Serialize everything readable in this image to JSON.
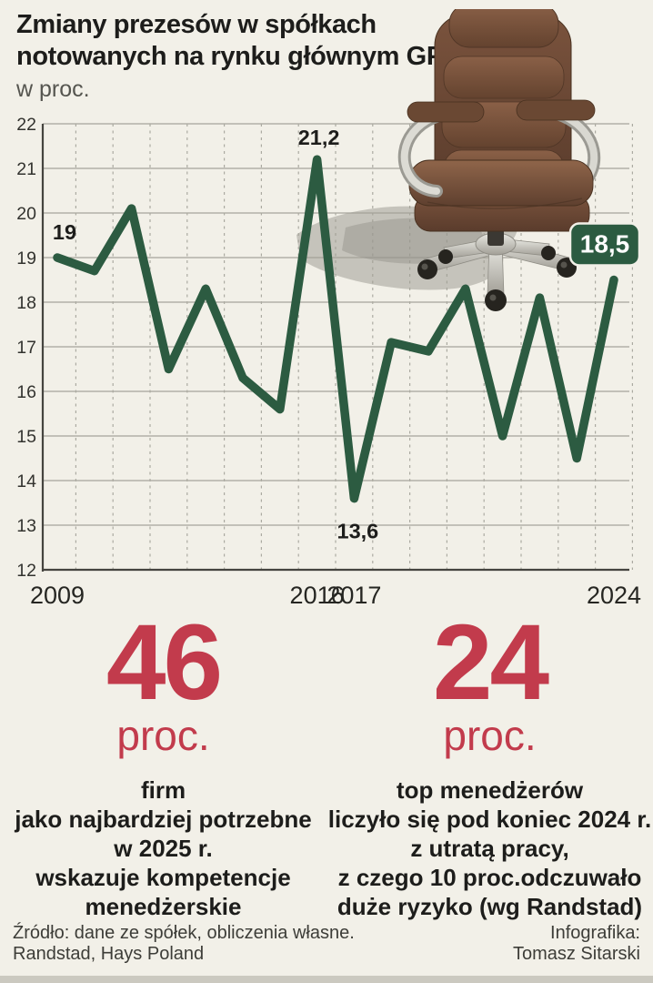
{
  "header": {
    "title_line1": "Zmiany prezesów  w spółkach",
    "title_line2": "notowanych na rynku głównym GPW",
    "subtitle": "w proc."
  },
  "chart_data": {
    "type": "line",
    "title": "Zmiany prezesów w spółkach notowanych na rynku głównym GPW",
    "unit": "proc.",
    "x": [
      2009,
      2010,
      2011,
      2012,
      2013,
      2014,
      2015,
      2016,
      2017,
      2018,
      2019,
      2020,
      2021,
      2022,
      2023,
      2024
    ],
    "values": [
      19.0,
      18.7,
      20.1,
      16.5,
      18.3,
      16.3,
      15.6,
      21.2,
      13.6,
      17.1,
      16.9,
      18.3,
      15.0,
      18.1,
      14.5,
      18.5
    ],
    "ylim": [
      12,
      22
    ],
    "y_ticks": [
      12,
      13,
      14,
      15,
      16,
      17,
      18,
      19,
      20,
      21,
      22
    ],
    "x_ticks_shown": [
      "2009",
      "2016",
      "2017",
      "2024"
    ],
    "annotations": [
      {
        "year": 2009,
        "label": "19",
        "style": "text"
      },
      {
        "year": 2016,
        "label": "21,2",
        "style": "text"
      },
      {
        "year": 2017,
        "label": "13,6",
        "style": "text"
      },
      {
        "year": 2024,
        "label": "18,5",
        "style": "badge"
      }
    ],
    "grid": true,
    "legend": "none",
    "line_color": "#2c5b41",
    "badge_color": "#2c5b41",
    "badge_text_color": "#ffffff"
  },
  "stats": [
    {
      "number": "46",
      "unit": "proc.",
      "lines": [
        "firm",
        "jako najbardziej potrzebne",
        "w 2025 r.",
        "wskazuje kompetencje",
        "menedżerskie"
      ]
    },
    {
      "number": "24",
      "unit": "proc.",
      "lines": [
        "top menedżerów",
        "liczyło się pod koniec 2024 r.",
        "z utratą pracy,",
        "z czego 10 proc.odczuwało",
        "duże ryzyko (wg Randstad)"
      ]
    }
  ],
  "footer": {
    "source_line1": "Źródło: dane ze spółek, obliczenia własne.",
    "source_line2": "Randstad, Hays Poland",
    "credit_line1": "Infografika:",
    "credit_line2": "Tomasz Sitarski"
  },
  "colors": {
    "background": "#f2f0e8",
    "accent_red": "#c23b4c",
    "line_green": "#2c5b41",
    "text_dark": "#1d1d1b",
    "grid_grey": "#a6a49b"
  }
}
